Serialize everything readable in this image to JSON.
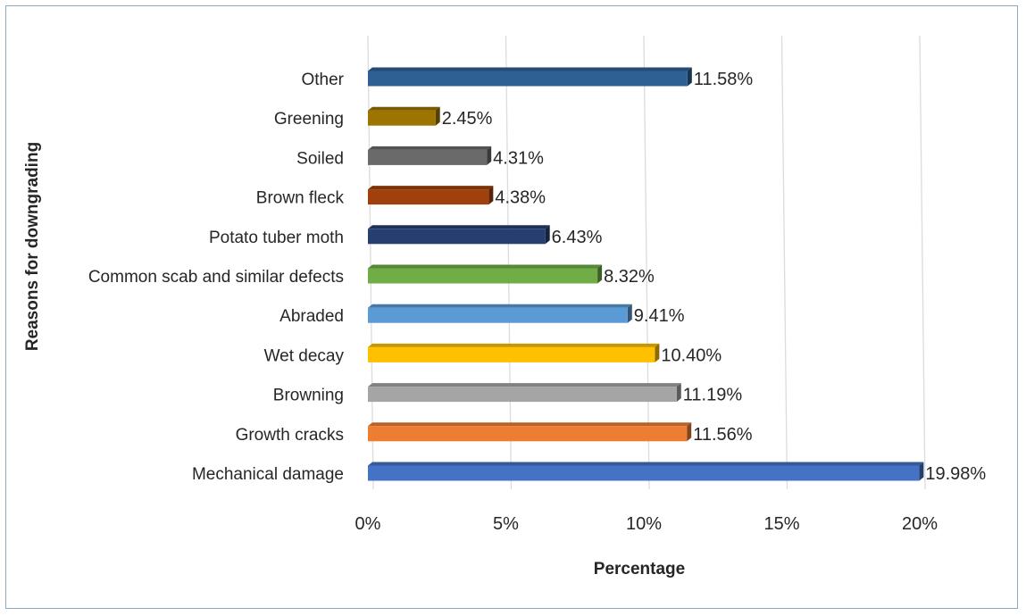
{
  "chart_data": {
    "type": "bar",
    "orientation": "horizontal",
    "title": "",
    "xlabel": "Percentage",
    "ylabel": "Reasons for downgrading",
    "xlim": [
      0,
      20
    ],
    "x_ticks": [
      "0%",
      "5%",
      "10%",
      "15%",
      "20%"
    ],
    "grid": "vertical",
    "legend": "none",
    "categories": [
      "Other",
      "Greening",
      "Soiled",
      "Brown fleck",
      "Potato tuber moth",
      "Common scab and similar defects",
      "Abraded",
      "Wet decay",
      "Browning",
      "Growth cracks",
      "Mechanical damage"
    ],
    "values": [
      11.58,
      2.45,
      4.31,
      4.38,
      6.43,
      8.32,
      9.41,
      10.4,
      11.19,
      11.56,
      19.98
    ],
    "data_labels": [
      "11.58%",
      "2.45%",
      "4.31%",
      "4.38%",
      "6.43%",
      "8.32%",
      "9.41%",
      "10.40%",
      "11.19%",
      "11.56%",
      "19.98%"
    ],
    "colors": [
      "#2e6094",
      "#9c7400",
      "#6a6a6a",
      "#a0410d",
      "#263f70",
      "#70ad47",
      "#5b9bd5",
      "#ffc000",
      "#a5a5a5",
      "#ed7d31",
      "#4472c4"
    ]
  }
}
